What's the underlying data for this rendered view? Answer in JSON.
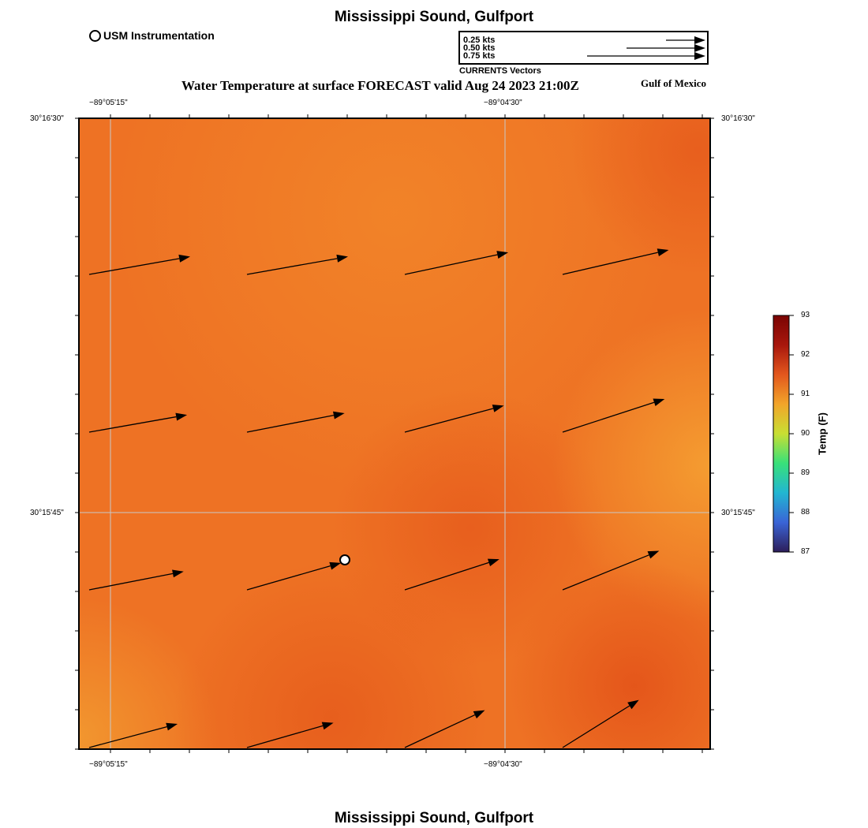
{
  "page": {
    "title_top": "Mississippi Sound, Gulfport",
    "title_bottom": "Mississippi Sound, Gulfport",
    "subtitle": "Water Temperature at surface FORECAST valid Aug 24 2023 21:00Z",
    "region_label": "Gulf of Mexico"
  },
  "legend": {
    "station_label": "USM Instrumentation",
    "vector_caption": "CURRENTS Vectors",
    "vector_scale": [
      {
        "label": "0.25 kts",
        "kts": 0.25
      },
      {
        "label": "0.50 kts",
        "kts": 0.5
      },
      {
        "label": "0.75 kts",
        "kts": 0.75
      }
    ]
  },
  "axes": {
    "lon_ticks": [
      "−89°05'15\"",
      "−89°04'30\""
    ],
    "lat_ticks": [
      "30°16'30\"",
      "30°15'45\""
    ]
  },
  "colorbar": {
    "title": "Temp (F)",
    "ticks": [
      "93",
      "92",
      "91",
      "90",
      "89",
      "88",
      "87"
    ],
    "min": 87,
    "max": 93,
    "colors": [
      "#2d1e5a",
      "#3a64d6",
      "#22b6d2",
      "#38e07a",
      "#c8df33",
      "#f2a52a",
      "#e3571d",
      "#a8170d",
      "#7a0403"
    ]
  },
  "map": {
    "background_color": "#ee7224",
    "vectors": [
      {
        "row": 1,
        "col": 1,
        "dir_deg": 10,
        "kts": 0.65
      },
      {
        "row": 1,
        "col": 2,
        "dir_deg": 10,
        "kts": 0.65
      },
      {
        "row": 1,
        "col": 3,
        "dir_deg": 12,
        "kts": 0.67
      },
      {
        "row": 1,
        "col": 4,
        "dir_deg": 13,
        "kts": 0.69
      },
      {
        "row": 2,
        "col": 1,
        "dir_deg": 10,
        "kts": 0.63
      },
      {
        "row": 2,
        "col": 2,
        "dir_deg": 11,
        "kts": 0.63
      },
      {
        "row": 2,
        "col": 3,
        "dir_deg": 15,
        "kts": 0.65
      },
      {
        "row": 2,
        "col": 4,
        "dir_deg": 18,
        "kts": 0.68
      },
      {
        "row": 3,
        "col": 1,
        "dir_deg": 11,
        "kts": 0.61
      },
      {
        "row": 3,
        "col": 2,
        "dir_deg": 16,
        "kts": 0.62
      },
      {
        "row": 3,
        "col": 3,
        "dir_deg": 18,
        "kts": 0.63
      },
      {
        "row": 3,
        "col": 4,
        "dir_deg": 22,
        "kts": 0.66
      },
      {
        "row": 4,
        "col": 1,
        "dir_deg": 15,
        "kts": 0.58
      },
      {
        "row": 4,
        "col": 2,
        "dir_deg": 16,
        "kts": 0.57
      },
      {
        "row": 4,
        "col": 3,
        "dir_deg": 25,
        "kts": 0.56
      },
      {
        "row": 4,
        "col": 4,
        "dir_deg": 32,
        "kts": 0.57
      }
    ]
  }
}
